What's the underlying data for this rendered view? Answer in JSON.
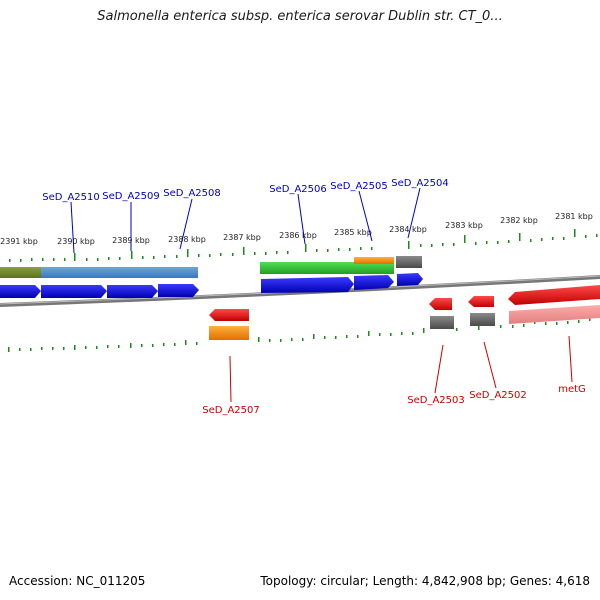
{
  "title": "Salmonella enterica subsp. enterica serovar Dublin str. CT_0...",
  "footer": {
    "accession": "Accession: NC_011205",
    "summary": "Topology: circular; Length: 4,842,908 bp; Genes: 4,618"
  },
  "colors": {
    "forward_label": "#0000cc",
    "reverse_label": "#cc0000",
    "tick": "#1a8a1a",
    "backbone": "#888888"
  },
  "kbp_labels": [
    "2391 kbp",
    "2390 kbp",
    "2389 kbp",
    "2388 kbp",
    "2387 kbp",
    "2386 kbp",
    "2385 kbp",
    "2384 kbp",
    "2383 kbp",
    "2382 kbp",
    "2381 kbp"
  ],
  "top_genes": [
    "SeD_A2510",
    "SeD_A2509",
    "SeD_A2508",
    "SeD_A2506",
    "SeD_A2505",
    "SeD_A2504"
  ],
  "bottom_genes": [
    "SeD_A2507",
    "SeD_A2503",
    "SeD_A2502",
    "metG"
  ]
}
